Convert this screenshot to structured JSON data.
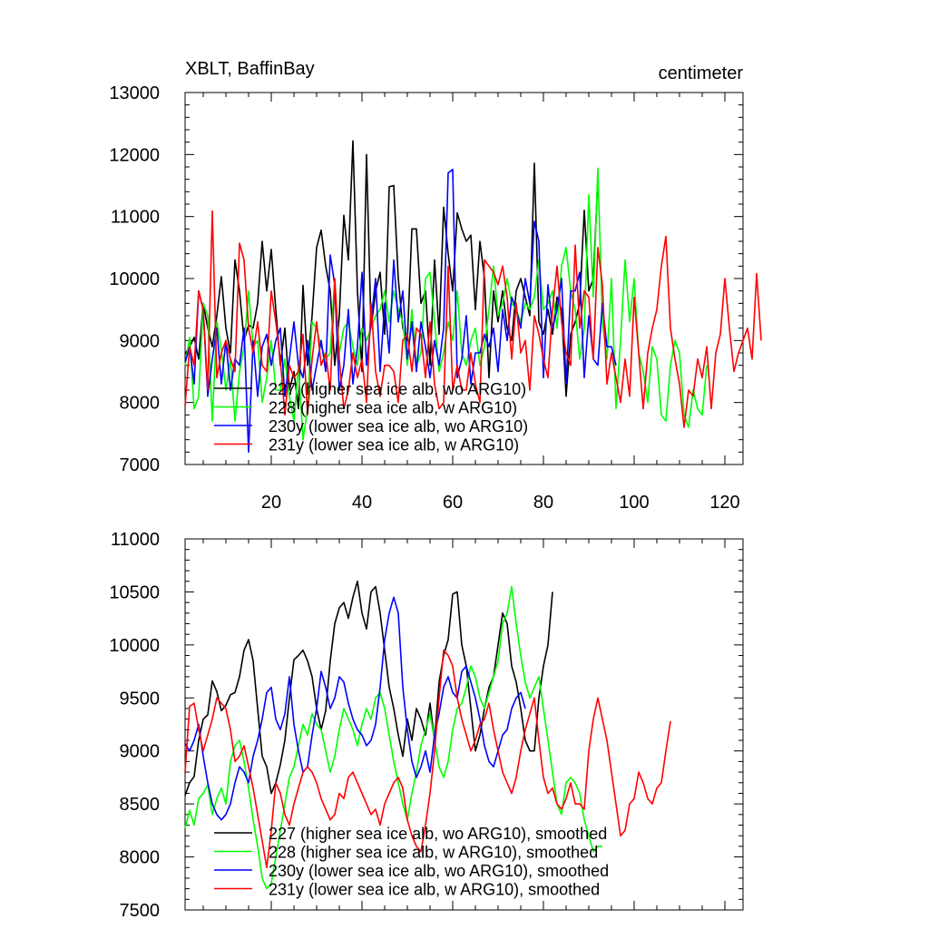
{
  "chart_data": [
    {
      "type": "line",
      "title": "XBLT, BaffinBay",
      "units": "centimeter",
      "xlabel": "",
      "ylabel": "",
      "xlim": [
        1,
        124
      ],
      "ylim": [
        7000,
        13000
      ],
      "xticks": [
        20,
        40,
        60,
        80,
        100,
        120
      ],
      "yticks": [
        7000,
        8000,
        9000,
        10000,
        11000,
        12000,
        13000
      ],
      "legend_position": "bottom-left",
      "series": [
        {
          "name": "227 (higher sea ice alb, wo ARG10)",
          "color": "#000000",
          "values": [
            8780,
            8900,
            9050,
            8700,
            9600,
            9200,
            8900,
            9400,
            10030,
            9200,
            8800,
            10300,
            9800,
            9000,
            9250,
            9200,
            9600,
            10600,
            9800,
            10470,
            9500,
            8600,
            9200,
            8200,
            8500,
            7900,
            9890,
            8600,
            9400,
            10500,
            10780,
            10200,
            9800,
            8600,
            9400,
            11020,
            10300,
            12220,
            9800,
            8500,
            12000,
            9200,
            9800,
            10100,
            9100,
            11480,
            11500,
            10000,
            9200,
            9000,
            10800,
            10800,
            9600,
            9800,
            8600,
            10300,
            9100,
            11150,
            10400,
            9800,
            11060,
            10800,
            10600,
            10700,
            9500,
            10600,
            10000,
            8400,
            9800,
            9300,
            9800,
            9200,
            9000,
            9800,
            10000,
            9700,
            9400,
            11860,
            9300,
            9100,
            9500,
            9100,
            9700,
            9500,
            8100,
            9100,
            9300,
            9600,
            11100,
            9800,
            10000,
            11620
          ]
        },
        {
          "name": "228 (higher sea ice alb, w ARG10)",
          "color": "#00ff00",
          "values": [
            8600,
            9050,
            7900,
            8100,
            9600,
            9400,
            7700,
            9300,
            8850,
            8200,
            8700,
            7700,
            8500,
            8900,
            9800,
            8900,
            9000,
            8000,
            8400,
            9000,
            8200,
            8200,
            8700,
            8100,
            7700,
            8600,
            7400,
            7900,
            9300,
            9200,
            8900,
            8700,
            8800,
            10000,
            8800,
            9200,
            9300,
            8900,
            8600,
            9200,
            9000,
            9200,
            9400,
            9500,
            9800,
            9300,
            9800,
            9500,
            9300,
            8600,
            9500,
            8600,
            8800,
            10000,
            10100,
            9300,
            8500,
            8800,
            9300,
            9000,
            9800,
            8800,
            8600,
            9000,
            9200,
            8600,
            8900,
            9500,
            10200,
            9400,
            9600,
            10000,
            9600,
            9500,
            9300,
            9600,
            9500,
            9700,
            10300,
            9500,
            9600,
            9800,
            9200,
            10200,
            10500,
            9800,
            9500,
            8700,
            9200,
            11350,
            9700,
            11780,
            9300,
            8700,
            10000,
            7900,
            9000,
            10300,
            9300,
            10000,
            8800,
            8500,
            8000,
            8900,
            8700,
            7800,
            7700,
            8600,
            9000,
            8800,
            7800,
            7600,
            8200,
            7900,
            7800,
            8600
          ]
        },
        {
          "name": "230y (lower sea ice alb, wo ARG10)",
          "color": "#0000ff",
          "values": [
            8650,
            8900,
            8300,
            9800,
            9500,
            8100,
            8700,
            9200,
            8300,
            9000,
            8200,
            8700,
            8600,
            9200,
            7200,
            9000,
            8100,
            8900,
            9100,
            8600,
            9000,
            9200,
            8100,
            8700,
            9300,
            8600,
            8400,
            9000,
            8200,
            8600,
            9000,
            8500,
            10380,
            9900,
            8200,
            8600,
            9500,
            8300,
            8900,
            10100,
            8600,
            9300,
            10000,
            8500,
            9600,
            8800,
            10300,
            9300,
            9800,
            8700,
            9300,
            8500,
            9300,
            8900,
            8400,
            9000,
            8600,
            9200,
            11700,
            11760,
            8400,
            8700,
            9400,
            8300,
            8800,
            8800,
            9100,
            8900,
            9200,
            8500,
            9500,
            9000,
            9700,
            9500,
            9200,
            10000,
            9600,
            10920,
            10600,
            8400,
            9900,
            9200,
            9500,
            10000,
            8300,
            9800,
            9800,
            10100,
            8400,
            9400,
            8700,
            8600,
            9600,
            8900,
            8900,
            8600
          ]
        },
        {
          "name": "231y (lower sea ice alb, w ARG10)",
          "color": "#ff0000",
          "values": [
            7950,
            8900,
            8600,
            9800,
            9500,
            8200,
            11090,
            8400,
            8800,
            9000,
            8700,
            8500,
            10570,
            10300,
            9200,
            8800,
            9300,
            8600,
            8500,
            9800,
            9300,
            8700,
            7800,
            8600,
            8400,
            8500,
            9100,
            7800,
            8700,
            9300,
            8600,
            8800,
            8200,
            10000,
            8700,
            7900,
            8200,
            8800,
            8400,
            8700,
            8000,
            9600,
            8500,
            8100,
            8600,
            8600,
            8500,
            8000,
            9000,
            9100,
            8500,
            9200,
            9100,
            8400,
            9300,
            8300,
            7900,
            8000,
            10200,
            8200,
            8600,
            8200,
            8200,
            8800,
            8300,
            8000,
            10300,
            10200,
            10100,
            9900,
            10200,
            9700,
            8700,
            9600,
            8800,
            9000,
            8200,
            9400,
            9100,
            8700,
            8400,
            9500,
            10200,
            9300,
            8800,
            8600,
            10540,
            9200,
            9800,
            9700,
            8700,
            10500,
            9900,
            8300,
            8800,
            8400,
            8000,
            8700,
            8100,
            9700,
            8800,
            7900,
            8800,
            9200,
            9500,
            10200,
            10680,
            9200,
            8700,
            8300,
            7600,
            8200,
            8100,
            8700,
            8400,
            8900,
            7900,
            8800,
            9100,
            10000,
            9200,
            8500,
            8800,
            9000,
            9200,
            8700,
            10080,
            9000
          ]
        }
      ]
    },
    {
      "type": "line",
      "title": "",
      "xlabel": "",
      "ylabel": "",
      "xlim": [
        1,
        124
      ],
      "ylim": [
        7500,
        11000
      ],
      "yticks": [
        7500,
        8000,
        8500,
        9000,
        9500,
        10000,
        10500,
        11000
      ],
      "legend_position": "bottom-left",
      "series": [
        {
          "name": "227 (higher sea ice alb, wo ARG10), smoothed",
          "color": "#000000",
          "values": [
            8580,
            8700,
            8760,
            9100,
            9300,
            9340,
            9660,
            9560,
            9380,
            9430,
            9530,
            9550,
            9700,
            9950,
            10050,
            9850,
            9400,
            8950,
            8850,
            8600,
            8700,
            8870,
            9100,
            9500,
            9860,
            9900,
            9950,
            9850,
            9700,
            9400,
            9200,
            9380,
            9850,
            10200,
            10350,
            10400,
            10250,
            10450,
            10600,
            10300,
            10150,
            10500,
            10550,
            10300,
            9950,
            9600,
            9400,
            9150,
            8950,
            9300,
            9100,
            9400,
            9300,
            9150,
            9450,
            9100,
            9650,
            9900,
            10050,
            10480,
            10500,
            10000,
            9800,
            9400,
            9000,
            9150,
            9400,
            9600,
            9700,
            10000,
            10300,
            10200,
            9800,
            9650,
            9400,
            9100,
            9000,
            9000,
            9500,
            9800,
            10000,
            10500
          ]
        },
        {
          "name": "228 (higher sea ice alb, w ARG10), smoothed",
          "color": "#00ff00",
          "values": [
            8270,
            8440,
            8300,
            8550,
            8600,
            8680,
            8400,
            8550,
            8650,
            8500,
            8900,
            9050,
            9100,
            8900,
            8650,
            8350,
            8100,
            7800,
            7700,
            7750,
            8000,
            8250,
            8500,
            8750,
            8850,
            9050,
            9250,
            9150,
            9350,
            9250,
            9200,
            9000,
            8800,
            8950,
            9200,
            9400,
            9300,
            9200,
            9050,
            9250,
            9400,
            9300,
            9500,
            9550,
            9400,
            9150,
            8900,
            8700,
            8500,
            8350,
            8600,
            8800,
            9050,
            9200,
            9350,
            9100,
            8850,
            8750,
            8900,
            9200,
            9400,
            9450,
            9600,
            9800,
            9700,
            9500,
            9400,
            9550,
            9700,
            9850,
            10200,
            10300,
            10550,
            10200,
            9900,
            9650,
            9500,
            9600,
            9700,
            9400,
            9100,
            8800,
            8500,
            8400,
            8700,
            8750,
            8700,
            8600,
            8350,
            8200,
            8050,
            8100,
            8100
          ]
        },
        {
          "name": "230y (lower sea ice alb, wo ARG10), smoothed",
          "color": "#0000ff",
          "values": [
            9070,
            9000,
            9100,
            9250,
            8950,
            8700,
            8500,
            8400,
            8350,
            8400,
            8500,
            8700,
            8850,
            8800,
            8700,
            8950,
            9100,
            9300,
            9550,
            9600,
            9300,
            9200,
            9350,
            9700,
            9250,
            9000,
            8800,
            8850,
            9150,
            9400,
            9750,
            9600,
            9400,
            9500,
            9700,
            9650,
            9450,
            9300,
            9200,
            9150,
            9050,
            9100,
            9250,
            9600,
            10050,
            10300,
            10450,
            10300,
            9600,
            9200,
            8900,
            8750,
            8850,
            9000,
            8800,
            9150,
            9350,
            9600,
            9700,
            9550,
            9500,
            9750,
            9800,
            9650,
            9500,
            9300,
            9050,
            8900,
            8850,
            9000,
            9150,
            9200,
            9400,
            9500,
            9550,
            9400
          ]
        },
        {
          "name": "231y (lower sea ice alb, w ARG10), smoothed",
          "color": "#ff0000",
          "values": [
            8800,
            9420,
            9450,
            9200,
            9000,
            9150,
            9300,
            9500,
            9450,
            9400,
            9200,
            8900,
            8950,
            9050,
            8850,
            8650,
            8400,
            8150,
            7900,
            8250,
            8700,
            8600,
            8400,
            8300,
            8500,
            8650,
            8800,
            8850,
            8800,
            8700,
            8550,
            8450,
            8350,
            8400,
            8600,
            8550,
            8750,
            8800,
            8700,
            8600,
            8500,
            8400,
            8450,
            8300,
            8500,
            8600,
            8700,
            8750,
            8650,
            8350,
            8200,
            8100,
            8050,
            8300,
            8600,
            9000,
            9500,
            9950,
            9900,
            9800,
            9500,
            9300,
            9150,
            9000,
            9100,
            9250,
            9300,
            9450,
            9200,
            9000,
            8800,
            8700,
            8600,
            8750,
            9000,
            9200,
            9350,
            9500,
            9100,
            8750,
            8600,
            8650,
            8500,
            8450,
            8550,
            8700,
            8500,
            8500,
            8450,
            9000,
            9300,
            9500,
            9300,
            9100,
            8800,
            8500,
            8200,
            8250,
            8500,
            8550,
            8800,
            8700,
            8550,
            8500,
            8650,
            8700,
            9000,
            9280
          ]
        }
      ]
    }
  ]
}
